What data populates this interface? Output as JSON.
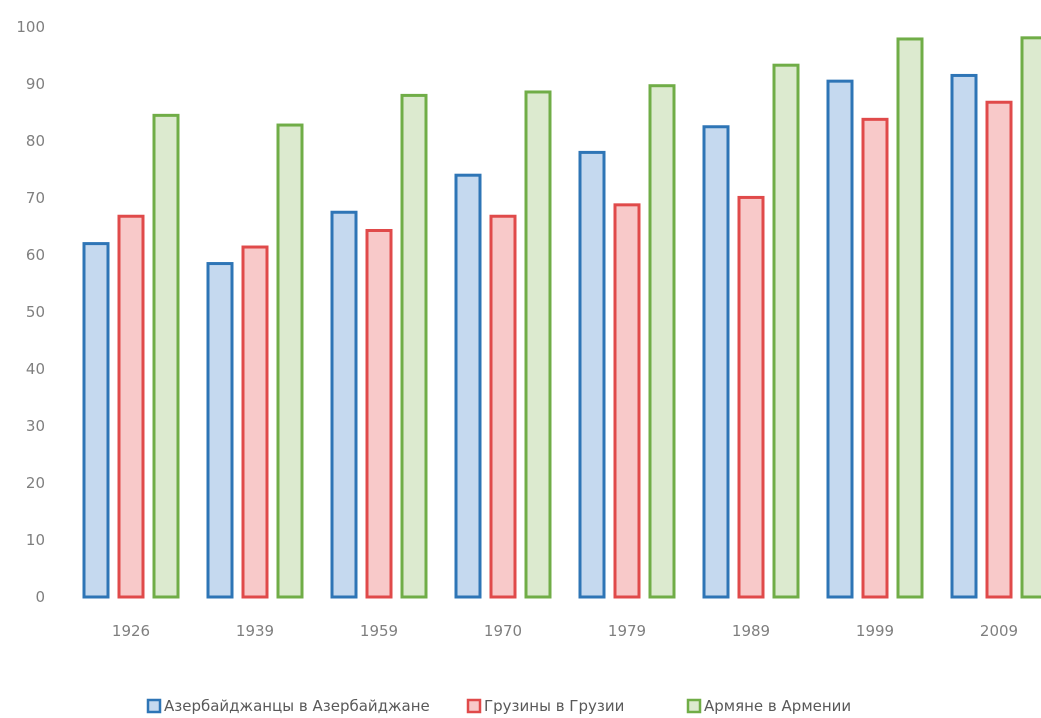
{
  "chart_data": {
    "type": "bar",
    "categories": [
      "1926",
      "1939",
      "1959",
      "1970",
      "1979",
      "1989",
      "1999",
      "2009"
    ],
    "series": [
      {
        "name": "Азербайджанцы в Азербайджане",
        "values": [
          62,
          58.5,
          67.5,
          74,
          78,
          82.5,
          90.5,
          91.5
        ],
        "stroke": "#2e75b6",
        "fill": "#c5d9ef"
      },
      {
        "name": "Грузины  в Грузии",
        "values": [
          66.8,
          61.4,
          64.3,
          66.8,
          68.8,
          70.1,
          83.8,
          86.8
        ],
        "stroke": "#e04a4a",
        "fill": "#f8c9c9"
      },
      {
        "name": "Армяне в Армении",
        "values": [
          84.5,
          82.8,
          88,
          88.6,
          89.7,
          93.3,
          97.9,
          98.1
        ],
        "stroke": "#70ad47",
        "fill": "#dceacf"
      }
    ],
    "ylim": [
      0,
      100
    ],
    "yticks": [
      "0",
      "10",
      "20",
      "30",
      "40",
      "50",
      "60",
      "70",
      "80",
      "90",
      "100"
    ],
    "grid": false,
    "legend_position": "bottom",
    "title": "",
    "xlabel": "",
    "ylabel": ""
  }
}
